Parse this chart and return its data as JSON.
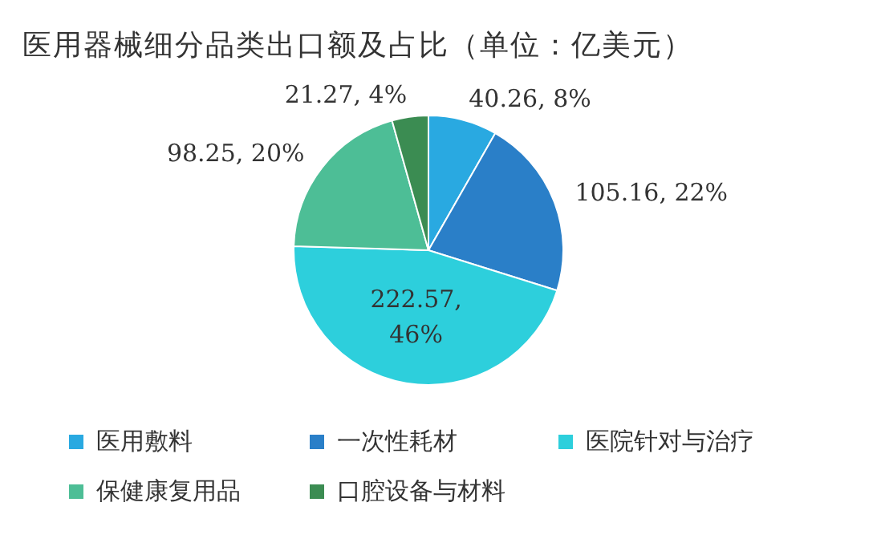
{
  "chart_data": {
    "type": "pie",
    "title": "医用器械细分品类出口额及占比（单位：亿美元）",
    "categories": [
      "医用敷料",
      "一次性耗材",
      "医院针对与治疗",
      "保健康复用品",
      "口腔设备与材料"
    ],
    "values": [
      40.26,
      105.16,
      222.57,
      98.25,
      21.27
    ],
    "colors": [
      "#29a9e1",
      "#2a7fc8",
      "#2dcfdc",
      "#4dbe96",
      "#3b8c52"
    ],
    "value_labels": [
      "40.26, 8%",
      "105.16, 22%",
      "222.57, 46%",
      "98.25, 20%",
      "21.27, 4%"
    ],
    "legend": "bottom"
  }
}
